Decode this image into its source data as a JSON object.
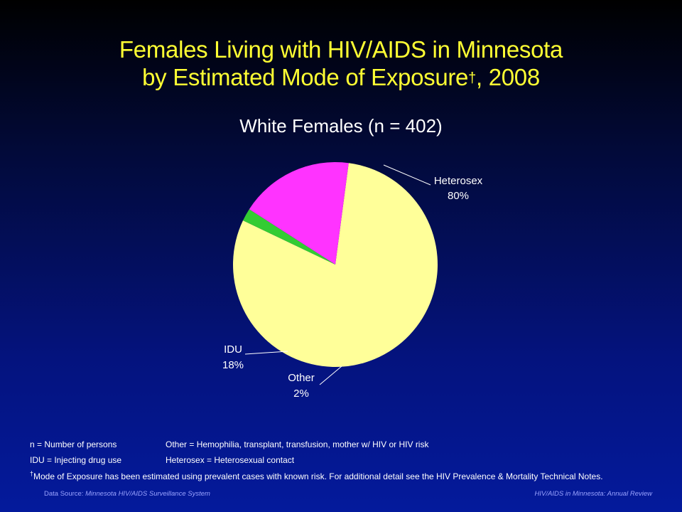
{
  "title": {
    "line1": "Females Living with HIV/AIDS in Minnesota",
    "line2_pre": "by Estimated Mode of Exposure",
    "dagger": "†",
    "line2_post": ", 2008"
  },
  "chart_data": {
    "type": "pie",
    "title": "White Females (n = 402)",
    "slices": [
      {
        "label": "Heterosex",
        "value": 80,
        "value_label": "80%",
        "color": "#ffff99"
      },
      {
        "label": "Other",
        "value": 2,
        "value_label": "2%",
        "color": "#33cc33"
      },
      {
        "label": "IDU",
        "value": 18,
        "value_label": "18%",
        "color": "#ff33ff"
      }
    ]
  },
  "footnotes": {
    "n_def": "n = Number of persons",
    "idu_def": "IDU = Injecting drug use",
    "other_def": "Other = Hemophilia, transplant, transfusion, mother w/ HIV or HIV risk",
    "hetero_def": "Heterosex = Heterosexual contact",
    "dagger": "†",
    "mode_note": "Mode of Exposure has been estimated using prevalent cases with known risk. For additional detail see the HIV Prevalence & Mortality Technical Notes."
  },
  "source": {
    "label": "Data Source:",
    "name": "Minnesota HIV/AIDS Surveillance System",
    "publication": "HIV/AIDS in Minnesota: Annual Review"
  }
}
